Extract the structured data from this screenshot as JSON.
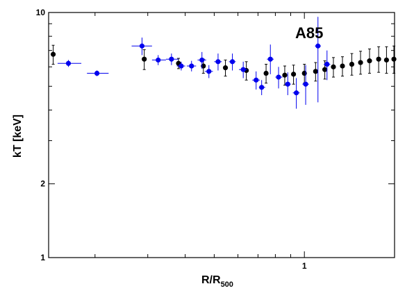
{
  "chart_data": {
    "type": "scatter",
    "title": "",
    "annotation": "A85",
    "xlabel": "R/R",
    "xlabel_sub": "500",
    "ylabel": "kT [keV]",
    "xscale": "log",
    "yscale": "log",
    "xlim": [
      0.14,
      2.0
    ],
    "ylim": [
      1,
      10
    ],
    "y_tick_labels": [
      {
        "value": 10,
        "label": "10"
      },
      {
        "value": 2,
        "label": "2"
      },
      {
        "value": 1,
        "label": "1"
      }
    ],
    "x_tick_labels": [
      {
        "value": 1,
        "label": "1"
      }
    ],
    "colors": {
      "series_black": "#000000",
      "series_blue": "#0000ee"
    },
    "series": [
      {
        "color": "black",
        "points": [
          {
            "x": 0.145,
            "y": 6.75,
            "ylo": 6.15,
            "yhi": 7.35
          },
          {
            "x": 0.292,
            "y": 6.45,
            "ylo": 5.85,
            "yhi": 7.05
          },
          {
            "x": 0.38,
            "y": 6.2,
            "ylo": 5.9,
            "yhi": 6.5
          },
          {
            "x": 0.46,
            "y": 6.05,
            "ylo": 5.65,
            "yhi": 6.45
          },
          {
            "x": 0.545,
            "y": 5.95,
            "ylo": 5.5,
            "yhi": 6.4
          },
          {
            "x": 0.64,
            "y": 5.8,
            "ylo": 5.3,
            "yhi": 6.3
          },
          {
            "x": 0.745,
            "y": 5.65,
            "ylo": 5.15,
            "yhi": 6.15
          },
          {
            "x": 0.86,
            "y": 5.55,
            "ylo": 5.05,
            "yhi": 6.05
          },
          {
            "x": 0.92,
            "y": 5.6,
            "ylo": 5.1,
            "yhi": 6.1
          },
          {
            "x": 1.0,
            "y": 5.65,
            "ylo": 5.15,
            "yhi": 6.15
          },
          {
            "x": 1.09,
            "y": 5.75,
            "ylo": 5.25,
            "yhi": 6.25
          },
          {
            "x": 1.17,
            "y": 5.85,
            "ylo": 5.35,
            "yhi": 6.35
          },
          {
            "x": 1.25,
            "y": 6.0,
            "ylo": 5.45,
            "yhi": 6.55
          },
          {
            "x": 1.34,
            "y": 6.05,
            "ylo": 5.5,
            "yhi": 6.6
          },
          {
            "x": 1.44,
            "y": 6.15,
            "ylo": 5.55,
            "yhi": 6.8
          },
          {
            "x": 1.54,
            "y": 6.25,
            "ylo": 5.6,
            "yhi": 6.95
          },
          {
            "x": 1.65,
            "y": 6.35,
            "ylo": 5.65,
            "yhi": 7.1
          },
          {
            "x": 1.77,
            "y": 6.45,
            "ylo": 5.7,
            "yhi": 7.25
          },
          {
            "x": 1.88,
            "y": 6.4,
            "ylo": 5.65,
            "yhi": 7.25
          },
          {
            "x": 1.99,
            "y": 6.45,
            "ylo": 5.65,
            "yhi": 7.3
          }
        ]
      },
      {
        "color": "blue",
        "points": [
          {
            "x": 0.163,
            "y": 6.2,
            "xlo": 0.15,
            "xhi": 0.18,
            "ylo": 6.0,
            "yhi": 6.4
          },
          {
            "x": 0.203,
            "y": 5.65,
            "xlo": 0.188,
            "xhi": 0.222,
            "ylo": 5.5,
            "yhi": 5.8
          },
          {
            "x": 0.287,
            "y": 7.3,
            "xlo": 0.265,
            "xhi": 0.31,
            "ylo": 6.7,
            "yhi": 7.9
          },
          {
            "x": 0.325,
            "y": 6.4,
            "xlo": 0.31,
            "xhi": 0.345,
            "ylo": 6.1,
            "yhi": 6.7
          },
          {
            "x": 0.36,
            "y": 6.45,
            "xlo": 0.345,
            "xhi": 0.38,
            "ylo": 6.1,
            "yhi": 6.8
          },
          {
            "x": 0.388,
            "y": 6.05,
            "xlo": 0.375,
            "xhi": 0.4,
            "ylo": 5.8,
            "yhi": 6.3
          },
          {
            "x": 0.42,
            "y": 6.05,
            "xlo": 0.405,
            "xhi": 0.435,
            "ylo": 5.75,
            "yhi": 6.35
          },
          {
            "x": 0.455,
            "y": 6.4,
            "xlo": 0.44,
            "xhi": 0.47,
            "ylo": 5.9,
            "yhi": 6.9
          },
          {
            "x": 0.48,
            "y": 5.75,
            "xlo": 0.465,
            "xhi": 0.495,
            "ylo": 5.4,
            "yhi": 6.1
          },
          {
            "x": 0.515,
            "y": 6.3,
            "xlo": 0.5,
            "xhi": 0.53,
            "ylo": 5.8,
            "yhi": 6.8
          },
          {
            "x": 0.575,
            "y": 6.3,
            "xlo": 0.56,
            "xhi": 0.59,
            "ylo": 5.8,
            "yhi": 6.8
          },
          {
            "x": 0.625,
            "y": 5.85,
            "xlo": 0.605,
            "xhi": 0.645,
            "ylo": 5.4,
            "yhi": 6.3
          },
          {
            "x": 0.69,
            "y": 5.3,
            "xlo": 0.67,
            "xhi": 0.71,
            "ylo": 4.85,
            "yhi": 5.75
          },
          {
            "x": 0.72,
            "y": 4.95,
            "xlo": 0.705,
            "xhi": 0.74,
            "ylo": 4.6,
            "yhi": 5.3
          },
          {
            "x": 0.77,
            "y": 6.45,
            "xlo": 0.75,
            "xhi": 0.79,
            "ylo": 5.6,
            "yhi": 7.4
          },
          {
            "x": 0.82,
            "y": 5.45,
            "xlo": 0.8,
            "xhi": 0.845,
            "ylo": 4.9,
            "yhi": 6.0
          },
          {
            "x": 0.88,
            "y": 5.1,
            "xlo": 0.86,
            "xhi": 0.9,
            "ylo": 4.6,
            "yhi": 5.7
          },
          {
            "x": 0.94,
            "y": 4.7,
            "xlo": 0.915,
            "xhi": 0.965,
            "ylo": 4.05,
            "yhi": 5.4
          },
          {
            "x": 1.01,
            "y": 5.1,
            "xlo": 0.985,
            "xhi": 1.035,
            "ylo": 4.2,
            "yhi": 6.1
          },
          {
            "x": 1.11,
            "y": 7.3,
            "xlo": 1.085,
            "xhi": 1.135,
            "ylo": 4.3,
            "yhi": 9.6
          },
          {
            "x": 1.19,
            "y": 6.15,
            "xlo": 1.16,
            "xhi": 1.22,
            "ylo": 5.3,
            "yhi": 7.0
          }
        ]
      }
    ]
  }
}
